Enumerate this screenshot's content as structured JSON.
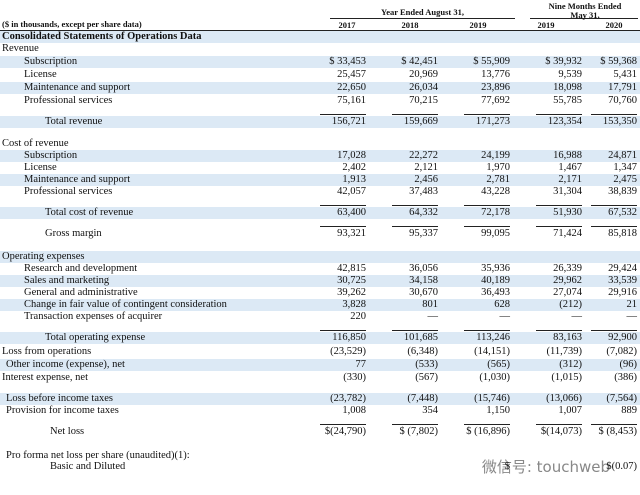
{
  "header": {
    "units": "($ in thousands, except per share data)",
    "year_heading": "Year Ended August 31,",
    "nine_heading_1": "Nine Months Ended",
    "nine_heading_2": "May 31,",
    "years": [
      "2017",
      "2018",
      "2019",
      "2019",
      "2020"
    ],
    "section": "Consolidated Statements of Operations Data"
  },
  "table": {
    "rows": [
      {
        "label": "Revenue",
        "cells": []
      },
      {
        "label": "Subscription",
        "cells": [
          "$ 33,453",
          "$ 42,451",
          "$ 55,909",
          "$ 39,932",
          "$ 59,368"
        ]
      },
      {
        "label": "License",
        "cells": [
          "25,457",
          "20,969",
          "13,776",
          "9,539",
          "5,431"
        ]
      },
      {
        "label": "Maintenance and support",
        "cells": [
          "22,650",
          "26,034",
          "23,896",
          "18,098",
          "17,791"
        ]
      },
      {
        "label": "Professional services",
        "cells": [
          "75,161",
          "70,215",
          "77,692",
          "55,785",
          "70,760"
        ]
      },
      {
        "label": "Total revenue",
        "cells": [
          "156,721",
          "159,669",
          "171,273",
          "123,354",
          "153,350"
        ]
      },
      {
        "label": "Cost of revenue",
        "cells": []
      },
      {
        "label": "Subscription",
        "cells": [
          "17,028",
          "22,272",
          "24,199",
          "16,988",
          "24,871"
        ]
      },
      {
        "label": "License",
        "cells": [
          "2,402",
          "2,121",
          "1,970",
          "1,467",
          "1,347"
        ]
      },
      {
        "label": "Maintenance and support",
        "cells": [
          "1,913",
          "2,456",
          "2,781",
          "2,171",
          "2,475"
        ]
      },
      {
        "label": "Professional services",
        "cells": [
          "42,057",
          "37,483",
          "43,228",
          "31,304",
          "38,839"
        ]
      },
      {
        "label": "Total cost of revenue",
        "cells": [
          "63,400",
          "64,332",
          "72,178",
          "51,930",
          "67,532"
        ]
      },
      {
        "label": "Gross margin",
        "cells": [
          "93,321",
          "95,337",
          "99,095",
          "71,424",
          "85,818"
        ]
      },
      {
        "label": "Operating expenses",
        "cells": []
      },
      {
        "label": "Research and development",
        "cells": [
          "42,815",
          "36,056",
          "35,936",
          "26,339",
          "29,424"
        ]
      },
      {
        "label": "Sales and marketing",
        "cells": [
          "30,725",
          "34,158",
          "40,189",
          "29,962",
          "33,539"
        ]
      },
      {
        "label": "General and administrative",
        "cells": [
          "39,262",
          "30,670",
          "36,493",
          "27,074",
          "29,916"
        ]
      },
      {
        "label": "Change in fair value of contingent consideration",
        "cells": [
          "3,828",
          "801",
          "628",
          "(212)",
          "21"
        ]
      },
      {
        "label": "Transaction expenses of acquirer",
        "cells": [
          "220",
          "—",
          "—",
          "—",
          "—"
        ]
      },
      {
        "label": "Total operating expense",
        "cells": [
          "116,850",
          "101,685",
          "113,246",
          "83,163",
          "92,900"
        ]
      },
      {
        "label": "Loss from operations",
        "cells": [
          "(23,529)",
          "(6,348)",
          "(14,151)",
          "(11,739)",
          "(7,082)"
        ]
      },
      {
        "label": "Other income (expense), net",
        "cells": [
          "77",
          "(533)",
          "(565)",
          "(312)",
          "(96)"
        ]
      },
      {
        "label": "Interest expense, net",
        "cells": [
          "(330)",
          "(567)",
          "(1,030)",
          "(1,015)",
          "(386)"
        ]
      },
      {
        "label": "Loss before income taxes",
        "cells": [
          "(23,782)",
          "(7,448)",
          "(15,746)",
          "(13,066)",
          "(7,564)"
        ]
      },
      {
        "label": "Provision for income taxes",
        "cells": [
          "1,008",
          "354",
          "1,150",
          "1,007",
          "889"
        ]
      },
      {
        "label": "Net loss",
        "cells": [
          "$(24,790)",
          "$ (7,802)",
          "$ (16,896)",
          "$(14,073)",
          "$ (8,453)"
        ]
      },
      {
        "label": "Pro forma net loss per share (unaudited)(1):",
        "cells": []
      },
      {
        "label": "Basic and Diluted",
        "cells": [
          "",
          "",
          "$",
          "",
          "$(0.07)"
        ]
      }
    ]
  },
  "watermark": "微信号: touchweb"
}
